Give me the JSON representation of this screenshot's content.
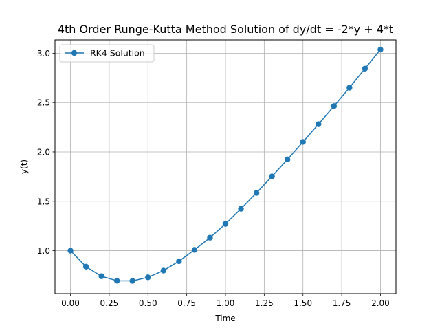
{
  "chart_data": {
    "type": "line",
    "title": "4th Order Runge-Kutta Method Solution of dy/dt = -2*y + 4*t",
    "xlabel": "Time",
    "ylabel": "y(t)",
    "xlim": [
      -0.1,
      2.1
    ],
    "ylim": [
      0.565,
      3.135
    ],
    "x_ticks": [
      0.0,
      0.25,
      0.5,
      0.75,
      1.0,
      1.25,
      1.5,
      1.75,
      2.0
    ],
    "x_tick_labels": [
      "0.00",
      "0.25",
      "0.50",
      "0.75",
      "1.00",
      "1.25",
      "1.50",
      "1.75",
      "2.00"
    ],
    "y_ticks": [
      1.0,
      1.5,
      2.0,
      2.5,
      3.0
    ],
    "y_tick_labels": [
      "1.0",
      "1.5",
      "2.0",
      "2.5",
      "3.0"
    ],
    "grid": true,
    "legend_position": "top-left",
    "series": [
      {
        "name": "RK4 Solution",
        "color": "#1f77b4",
        "marker": "circle",
        "x": [
          0.0,
          0.1,
          0.2,
          0.3,
          0.4,
          0.5,
          0.6,
          0.7,
          0.8,
          0.9,
          1.0,
          1.1,
          1.2,
          1.3,
          1.4,
          1.5,
          1.6,
          1.7,
          1.8,
          1.9,
          2.0
        ],
        "y": [
          1.0,
          0.838,
          0.741,
          0.695,
          0.694,
          0.73,
          0.798,
          0.893,
          1.008,
          1.131,
          1.271,
          1.424,
          1.585,
          1.752,
          1.924,
          2.101,
          2.281,
          2.464,
          2.651,
          2.844,
          3.037
        ]
      }
    ]
  }
}
